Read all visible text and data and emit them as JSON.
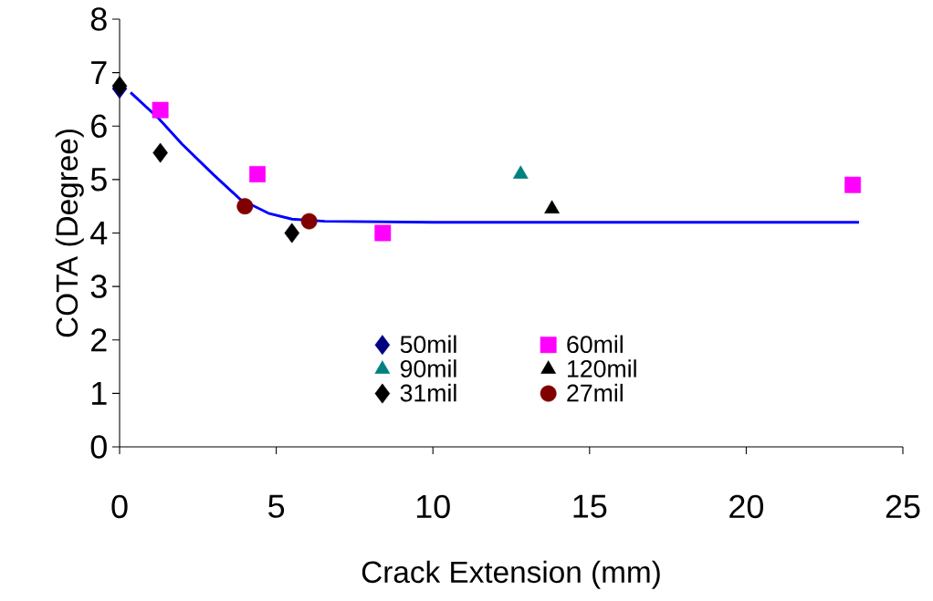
{
  "chart_data": {
    "type": "scatter",
    "xlabel": "Crack Extension (mm)",
    "ylabel": "COTA (Degree)",
    "xlim": [
      0,
      25
    ],
    "ylim": [
      0,
      8
    ],
    "xticks": [
      0,
      5,
      10,
      15,
      20,
      25
    ],
    "yticks": [
      0,
      1,
      2,
      3,
      4,
      5,
      6,
      7,
      8
    ],
    "grid": false,
    "legend": "bottom",
    "series": [
      {
        "name": "50mil",
        "color": "#000080",
        "marker": "diamond",
        "x": [
          0
        ],
        "values": [
          6.7
        ]
      },
      {
        "name": "60mil",
        "color": "#ff00ff",
        "marker": "square",
        "x": [
          1.3,
          4.4,
          8.4,
          23.4
        ],
        "values": [
          6.3,
          5.1,
          4.0,
          4.9
        ]
      },
      {
        "name": "90mil",
        "color": "#008080",
        "marker": "triangle",
        "x": [
          12.8
        ],
        "values": [
          5.1
        ]
      },
      {
        "name": "120mil",
        "color": "#000000",
        "marker": "triangle",
        "x": [
          13.8
        ],
        "values": [
          4.45
        ]
      },
      {
        "name": "31mil",
        "color": "#000000",
        "marker": "diamond",
        "x": [
          0,
          1.3,
          5.5
        ],
        "values": [
          6.75,
          5.5,
          4.0
        ]
      },
      {
        "name": "27mil",
        "color": "#800000",
        "marker": "circle",
        "x": [
          4.0,
          6.05
        ],
        "values": [
          4.5,
          4.22
        ]
      },
      {
        "type": "line",
        "color": "#0000ff",
        "marker": "none",
        "line_style": "solid",
        "x": [
          0.35,
          1.25,
          2.0,
          3.0,
          3.85,
          4.75,
          5.5,
          6.55,
          10,
          15,
          20,
          23.6
        ],
        "values": [
          6.63,
          6.14,
          5.66,
          5.09,
          4.63,
          4.37,
          4.26,
          4.22,
          4.2,
          4.2,
          4.2,
          4.2
        ]
      }
    ]
  }
}
